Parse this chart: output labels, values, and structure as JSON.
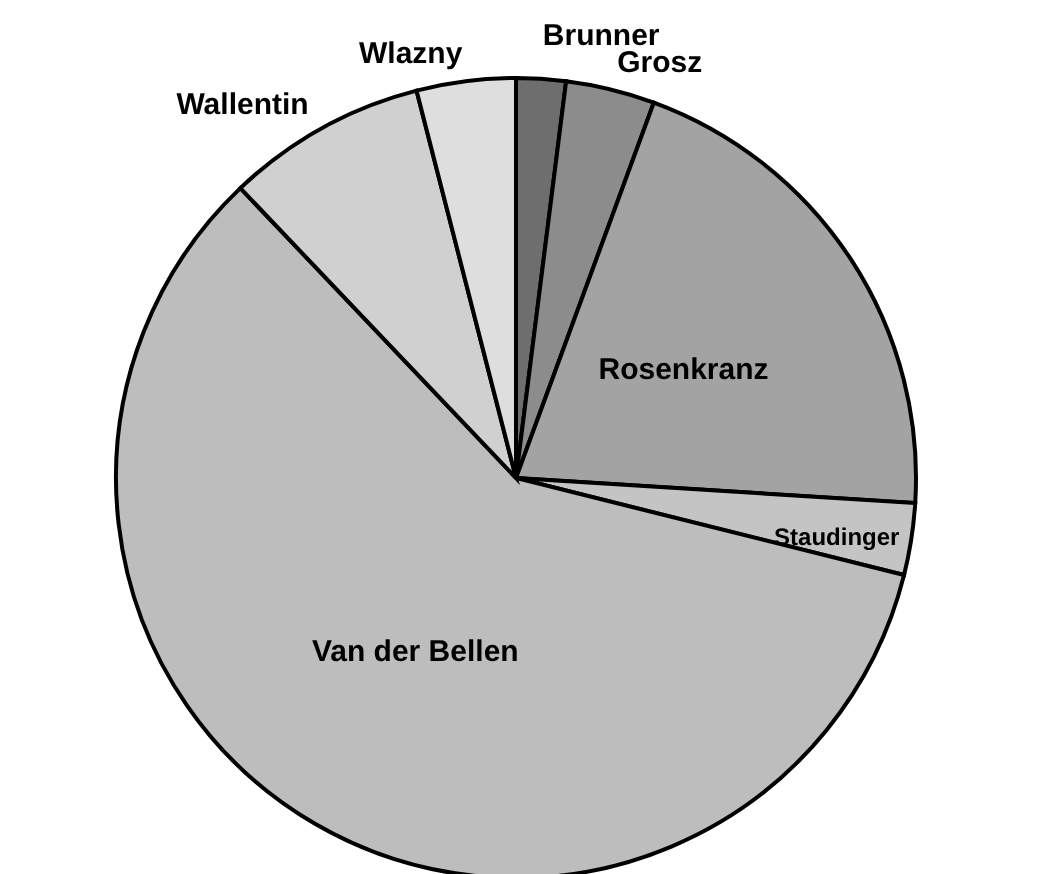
{
  "chart_data": {
    "type": "pie",
    "categories": [
      "Brunner",
      "Grosz",
      "Rosenkranz",
      "Staudinger",
      "Van der Bellen",
      "Wallentin",
      "Wlazny"
    ],
    "values": [
      2,
      3.6,
      20.4,
      2.9,
      59,
      8.1,
      4
    ],
    "colors": [
      "#6e6e6e",
      "#8c8c8c",
      "#a3a3a3",
      "#c4c4c4",
      "#bdbdbd",
      "#d0d0d0",
      "#dedede"
    ]
  }
}
